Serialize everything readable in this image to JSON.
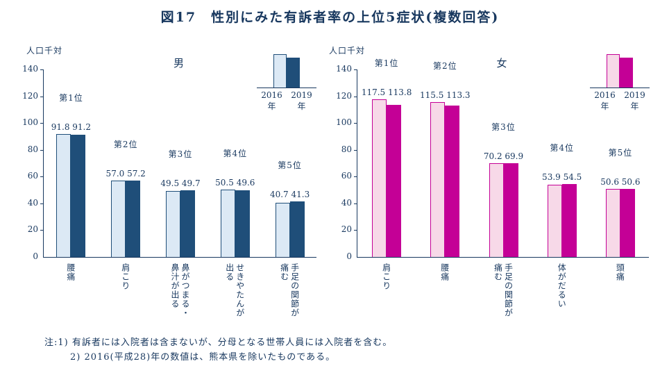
{
  "page": {
    "title": "図17　性別にみた有訴者率の上位5症状(複数回答)"
  },
  "notes": {
    "line1": "注:1) 有訴者には入院者は含まないが、分母となる世帯人員には入院者を含む。",
    "line2": "2) 2016(平成28)年の数値は、熊本県を除いたものである。"
  },
  "chart_data": [
    {
      "type": "bar",
      "title": "男",
      "ylabel": "人口千対",
      "ylim": [
        0,
        140
      ],
      "yticks": [
        0,
        20,
        40,
        60,
        80,
        100,
        120,
        140
      ],
      "legend_years": [
        "2016",
        "2019"
      ],
      "legend_suffix": "年",
      "legend_position": "top-right",
      "grid": false,
      "ranks": [
        "第1位",
        "第2位",
        "第3位",
        "第4位",
        "第5位"
      ],
      "categories": [
        "腰痛",
        "肩こり",
        "鼻がつまる・鼻汁が出る",
        "せきやたんが出る",
        "手足の関節が痛む"
      ],
      "series": [
        {
          "name": "2016年",
          "values": [
            "91.8",
            "57.0",
            "49.5",
            "50.5",
            "40.7"
          ]
        },
        {
          "name": "2019年",
          "values": [
            "91.2",
            "57.2",
            "49.7",
            "49.6",
            "41.3"
          ]
        }
      ],
      "colors": {
        "series1_fill": "#dce9f5",
        "series1_border": "#1f4e79",
        "series2_fill": "#1f4e79",
        "axis": "#17375e"
      }
    },
    {
      "type": "bar",
      "title": "女",
      "ylabel": "人口千対",
      "ylim": [
        0,
        140
      ],
      "yticks": [
        0,
        20,
        40,
        60,
        80,
        100,
        120,
        140
      ],
      "legend_years": [
        "2016",
        "2019"
      ],
      "legend_suffix": "年",
      "legend_position": "top-right",
      "grid": false,
      "ranks": [
        "第1位",
        "第2位",
        "第3位",
        "第4位",
        "第5位"
      ],
      "categories": [
        "肩こり",
        "腰痛",
        "手足の関節が痛む",
        "体がだるい",
        "頭痛"
      ],
      "series": [
        {
          "name": "2016年",
          "values": [
            "117.5",
            "115.5",
            "70.2",
            "53.9",
            "50.6"
          ]
        },
        {
          "name": "2019年",
          "values": [
            "113.8",
            "113.3",
            "69.9",
            "54.5",
            "50.6"
          ]
        }
      ],
      "colors": {
        "series1_fill": "#f7d9e8",
        "series1_border": "#c40096",
        "series2_fill": "#c40096",
        "axis": "#17375e"
      }
    }
  ]
}
